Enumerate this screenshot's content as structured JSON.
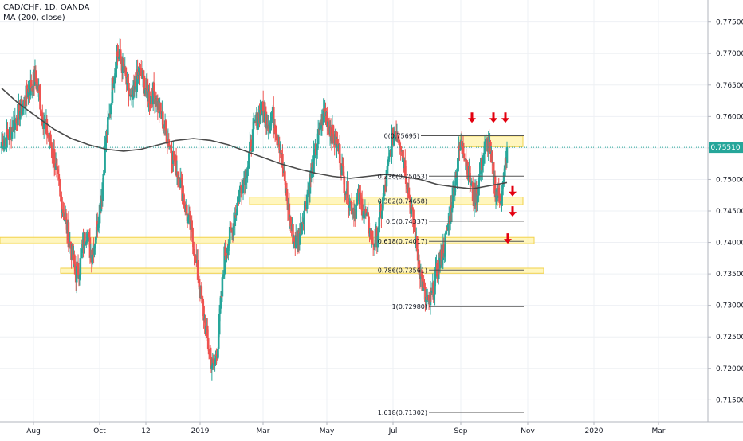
{
  "header": {
    "symbol_line": "CAD/CHF, 1D, OANDA",
    "indicator_line": "MA (200, close)"
  },
  "colors": {
    "up": "#26a69a",
    "down": "#ef5350",
    "ma": "#4a4a4a",
    "zone_fill": "#fff3a8",
    "zone_stroke": "#f2d24b",
    "arrow": "#e3000f",
    "grid": "#eef0f4",
    "price_tag": "#26a69a"
  },
  "chart_data": {
    "type": "candlestick",
    "title": "CAD/CHF, 1D, OANDA",
    "indicator": "MA (200, close)",
    "ylim": [
      0.7115,
      0.7785
    ],
    "y_ticks": [
      "0.77500",
      "0.77000",
      "0.76500",
      "0.76000",
      "0.75500",
      "0.75000",
      "0.74500",
      "0.74000",
      "0.73500",
      "0.73000",
      "0.72500",
      "0.72000",
      "0.71500"
    ],
    "x_ticks": [
      "Aug",
      "Oct",
      "12",
      "2019",
      "Mar",
      "May",
      "Jul",
      "Sep",
      "Nov",
      "2020",
      "Mar"
    ],
    "last_price": "0.75510",
    "fib_levels": [
      {
        "label": "0(0.75695)",
        "value": 0.75695
      },
      {
        "label": "0.236(0.75053)",
        "value": 0.75053
      },
      {
        "label": "0.382(0.74658)",
        "value": 0.74658
      },
      {
        "label": "0.5(0.74337)",
        "value": 0.74337
      },
      {
        "label": "0.618(0.74017)",
        "value": 0.74017
      },
      {
        "label": "0.786(0.73561)",
        "value": 0.73561
      },
      {
        "label": "1(0.72980)",
        "value": 0.7298
      },
      {
        "label": "1.618(0.71302)",
        "value": 0.71302
      }
    ],
    "zones": [
      {
        "from": 0.7552,
        "to": 0.7569
      },
      {
        "from": 0.746,
        "to": 0.7472
      },
      {
        "from": 0.7398,
        "to": 0.7408
      },
      {
        "from": 0.7351,
        "to": 0.7359
      }
    ],
    "arrow_count": 6,
    "ma_path": [
      [
        0.7645
      ],
      [
        0.762
      ],
      [
        0.76
      ],
      [
        0.758
      ],
      [
        0.7565
      ],
      [
        0.7555
      ],
      [
        0.7548
      ],
      [
        0.7545
      ],
      [
        0.7548
      ],
      [
        0.7555
      ],
      [
        0.7562
      ],
      [
        0.7565
      ],
      [
        0.7562
      ],
      [
        0.7555
      ],
      [
        0.7545
      ],
      [
        0.7535
      ],
      [
        0.7525
      ],
      [
        0.7517
      ],
      [
        0.751
      ],
      [
        0.7505
      ],
      [
        0.7502
      ],
      [
        0.7505
      ],
      [
        0.7508
      ],
      [
        0.7505
      ],
      [
        0.75
      ],
      [
        0.7492
      ],
      [
        0.7488
      ],
      [
        0.7485
      ],
      [
        0.749
      ],
      [
        0.7495
      ]
    ],
    "candle_path": [
      0.756,
      0.7565,
      0.757,
      0.7585,
      0.76,
      0.761,
      0.762,
      0.764,
      0.765,
      0.766,
      0.764,
      0.76,
      0.758,
      0.756,
      0.754,
      0.75,
      0.747,
      0.744,
      0.741,
      0.738,
      0.735,
      0.736,
      0.74,
      0.742,
      0.738,
      0.74,
      0.744,
      0.748,
      0.756,
      0.76,
      0.766,
      0.77,
      0.769,
      0.767,
      0.764,
      0.762,
      0.765,
      0.767,
      0.766,
      0.764,
      0.763,
      0.764,
      0.762,
      0.76,
      0.758,
      0.756,
      0.754,
      0.752,
      0.75,
      0.747,
      0.744,
      0.742,
      0.738,
      0.734,
      0.73,
      0.726,
      0.722,
      0.72,
      0.723,
      0.73,
      0.738,
      0.74,
      0.742,
      0.745,
      0.748,
      0.75,
      0.752,
      0.755,
      0.758,
      0.76,
      0.761,
      0.76,
      0.759,
      0.76,
      0.758,
      0.755,
      0.75,
      0.746,
      0.742,
      0.74,
      0.741,
      0.744,
      0.747,
      0.75,
      0.753,
      0.756,
      0.759,
      0.761,
      0.759,
      0.757,
      0.756,
      0.754,
      0.75,
      0.748,
      0.746,
      0.745,
      0.747,
      0.746,
      0.744,
      0.742,
      0.74,
      0.741,
      0.744,
      0.748,
      0.752,
      0.756,
      0.758,
      0.757,
      0.754,
      0.75,
      0.746,
      0.742,
      0.738,
      0.734,
      0.731,
      0.73,
      0.732,
      0.735,
      0.737,
      0.739,
      0.742,
      0.746,
      0.75,
      0.754,
      0.756,
      0.753,
      0.75,
      0.747,
      0.748,
      0.752,
      0.755,
      0.756,
      0.752,
      0.748,
      0.747,
      0.749,
      0.7551
    ]
  }
}
